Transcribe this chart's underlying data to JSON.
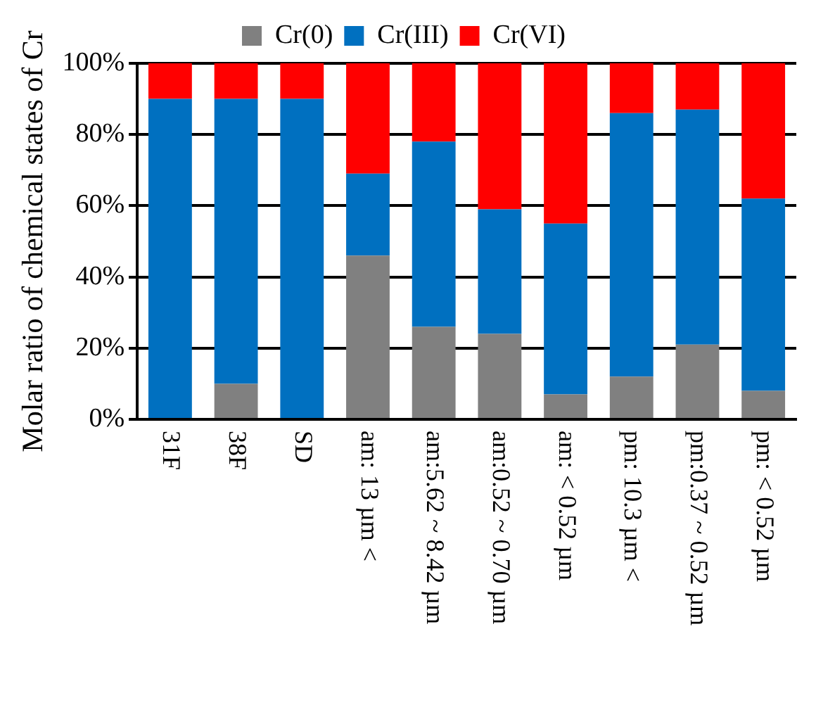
{
  "chart_data": {
    "type": "bar",
    "stacked": true,
    "ylabel": "Molar ratio of chemical states of Cr",
    "categories": [
      "31F",
      "38F",
      "SD",
      "am: 13 µm <",
      "am:5.62 ~ 8.42 µm",
      "am:0.52 ~ 0.70 µm",
      "am: < 0.52 µm",
      "pm: 10.3 µm <",
      "pm:0.37 ~ 0.52 µm",
      "pm: < 0.52 µm"
    ],
    "series": [
      {
        "name": "Cr(0)",
        "color": "#808080",
        "values": [
          0,
          10,
          0,
          46,
          26,
          24,
          7,
          12,
          21,
          8
        ]
      },
      {
        "name": "Cr(III)",
        "color": "#0070c0",
        "values": [
          90,
          80,
          90,
          23,
          52,
          35,
          48,
          74,
          66,
          54
        ]
      },
      {
        "name": "Cr(VI)",
        "color": "#ff0000",
        "values": [
          10,
          10,
          10,
          31,
          22,
          41,
          45,
          14,
          13,
          38
        ]
      }
    ],
    "ylim": [
      0,
      100
    ],
    "yticks": [
      {
        "value": 0,
        "label": "0%"
      },
      {
        "value": 20,
        "label": "20%"
      },
      {
        "value": 40,
        "label": "40%"
      },
      {
        "value": 60,
        "label": "60%"
      },
      {
        "value": 80,
        "label": "80%"
      },
      {
        "value": 100,
        "label": "100%"
      }
    ],
    "grid": "y",
    "legend": "top"
  }
}
